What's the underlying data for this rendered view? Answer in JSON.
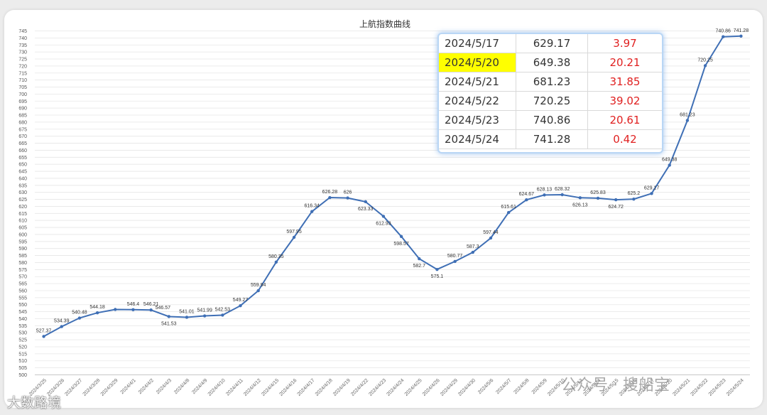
{
  "chart_data": {
    "type": "line",
    "title": "上航指数曲线",
    "ylim": [
      500,
      745
    ],
    "ytick_step": 5,
    "grid": true,
    "color": "#3f6fb5",
    "x": [
      "2024/3/25",
      "2024/3/26",
      "2024/3/27",
      "2024/3/28",
      "2024/3/29",
      "2024/4/1",
      "2024/4/2",
      "2024/4/3",
      "2024/4/8",
      "2024/4/9",
      "2024/4/10",
      "2024/4/11",
      "2024/4/12",
      "2024/4/15",
      "2024/4/16",
      "2024/4/17",
      "2024/4/18",
      "2024/4/19",
      "2024/4/22",
      "2024/4/23",
      "2024/4/24",
      "2024/4/25",
      "2024/4/26",
      "2024/4/29",
      "2024/4/30",
      "2024/5/6",
      "2024/5/7",
      "2024/5/8",
      "2024/5/9",
      "2024/5/10",
      "2024/5/13",
      "2024/5/14",
      "2024/5/15",
      "2024/5/16",
      "2024/5/17",
      "2024/5/20",
      "2024/5/21",
      "2024/5/22",
      "2024/5/23",
      "2024/5/24"
    ],
    "values": [
      527.37,
      534.39,
      540.48,
      544.18,
      546.57,
      546.4,
      546.21,
      541.53,
      541.01,
      541.99,
      542.53,
      549.27,
      559.94,
      580.35,
      597.95,
      616.34,
      626.28,
      626,
      623.33,
      612.93,
      598.57,
      582.7,
      575.1,
      580.77,
      587.3,
      597.44,
      615.61,
      624.67,
      628.13,
      628.32,
      626.13,
      625.83,
      624.72,
      625.2,
      629.17,
      649.38,
      681.23,
      720.25,
      740.86,
      741.28
    ],
    "point_labels": [
      "527.37",
      "534.39",
      "540.48",
      "544.18",
      "",
      "546.4",
      "546.21",
      "541.53",
      "541.01",
      "541.99",
      "542.53",
      "549.27",
      "559.94",
      "580.35",
      "597.95",
      "616.34",
      "626.28",
      "626",
      "623.33",
      "612.93",
      "598.57",
      "582.7",
      "575.1",
      "580.77",
      "587.3",
      "597.44",
      "615.61",
      "624.67",
      "628.13",
      "628.32",
      "626.13",
      "625.83",
      "624.72",
      "625.2",
      "629.17",
      "649.38",
      "681.23",
      "720.25",
      "740.86",
      "741.28"
    ],
    "extra_labels": [
      {
        "index": 6,
        "text": "546.57"
      }
    ]
  },
  "inset_table": {
    "rows": [
      {
        "date": "2024/5/17",
        "value": "629.17",
        "change": "3.97",
        "highlight": false
      },
      {
        "date": "2024/5/20",
        "value": "649.38",
        "change": "20.21",
        "highlight": true
      },
      {
        "date": "2024/5/21",
        "value": "681.23",
        "change": "31.85",
        "highlight": false
      },
      {
        "date": "2024/5/22",
        "value": "720.25",
        "change": "39.02",
        "highlight": false
      },
      {
        "date": "2024/5/23",
        "value": "740.86",
        "change": "20.61",
        "highlight": false
      },
      {
        "date": "2024/5/24",
        "value": "741.28",
        "change": "0.42",
        "highlight": false
      }
    ],
    "highlight_color": "#ffff00",
    "change_color": "#e02020"
  },
  "watermarks": {
    "left": "大数路境",
    "right": "公众号 · 搜船宝"
  }
}
